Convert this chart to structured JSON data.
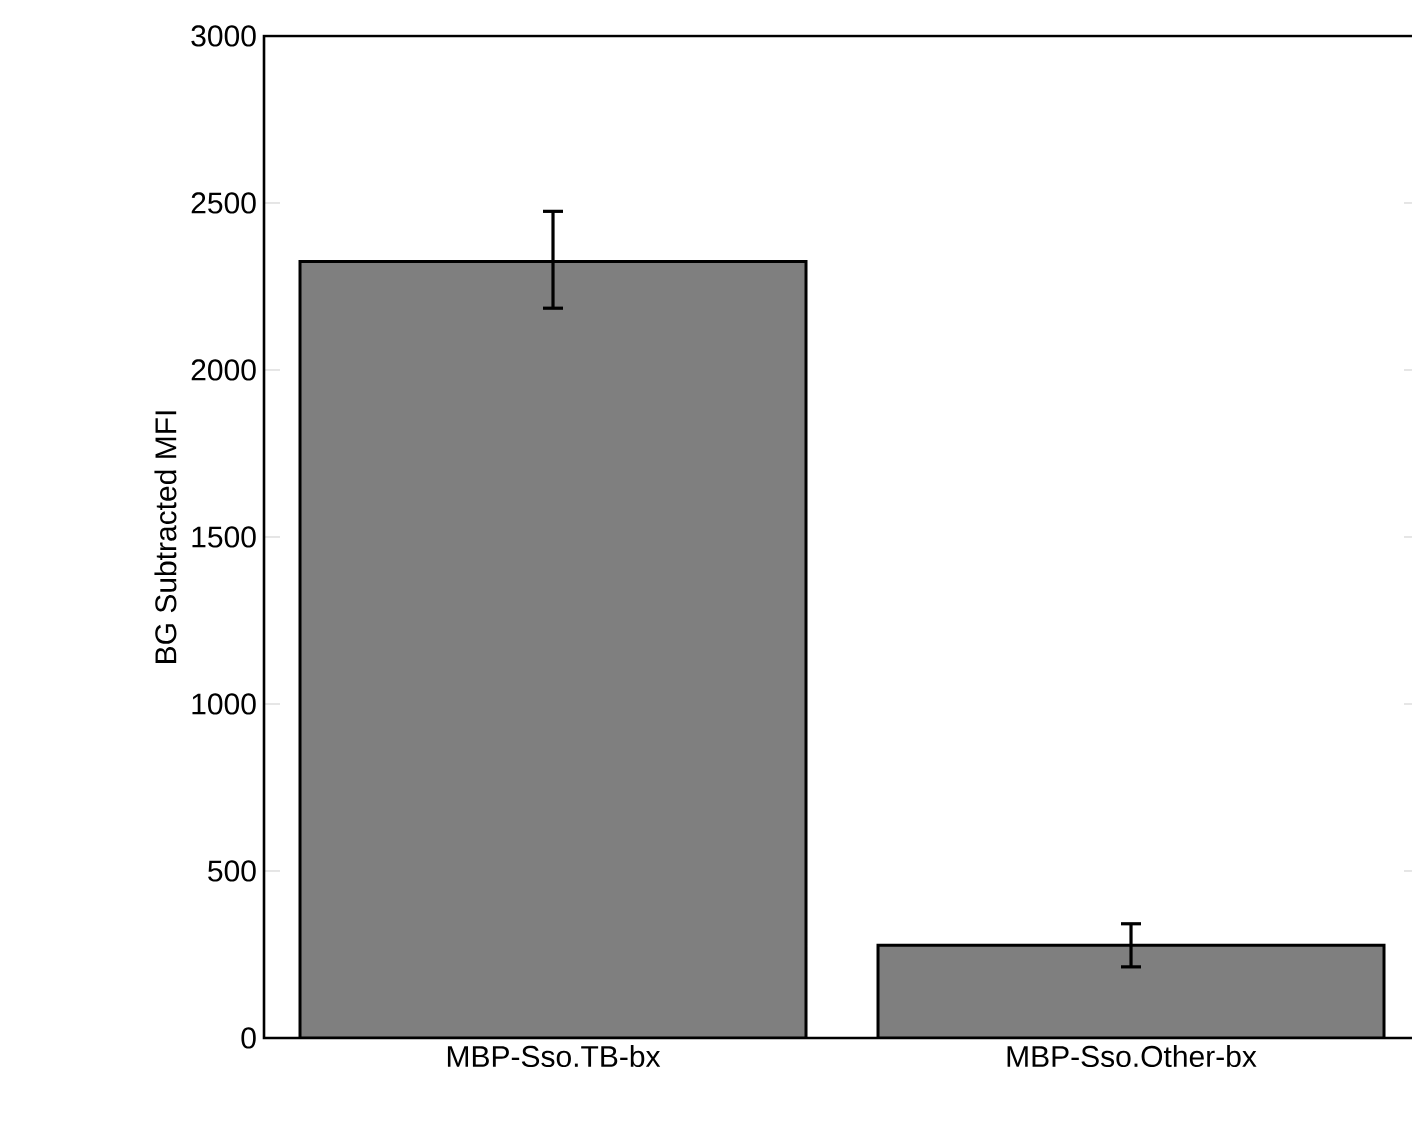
{
  "chart_data": {
    "type": "bar",
    "ylabel": "BG Subtracted MFI",
    "categories": [
      "MBP-Sso.TB-bx",
      "MBP-Sso.Other-bx"
    ],
    "values": [
      2325,
      278
    ],
    "errors": [
      [
        2185,
        2475
      ],
      [
        213,
        342
      ]
    ],
    "color": "#7f7f7f",
    "ylim": [
      0,
      3000
    ],
    "yticks": [
      0,
      500,
      1000,
      1500,
      2000,
      2500,
      3000
    ],
    "grid": false
  }
}
